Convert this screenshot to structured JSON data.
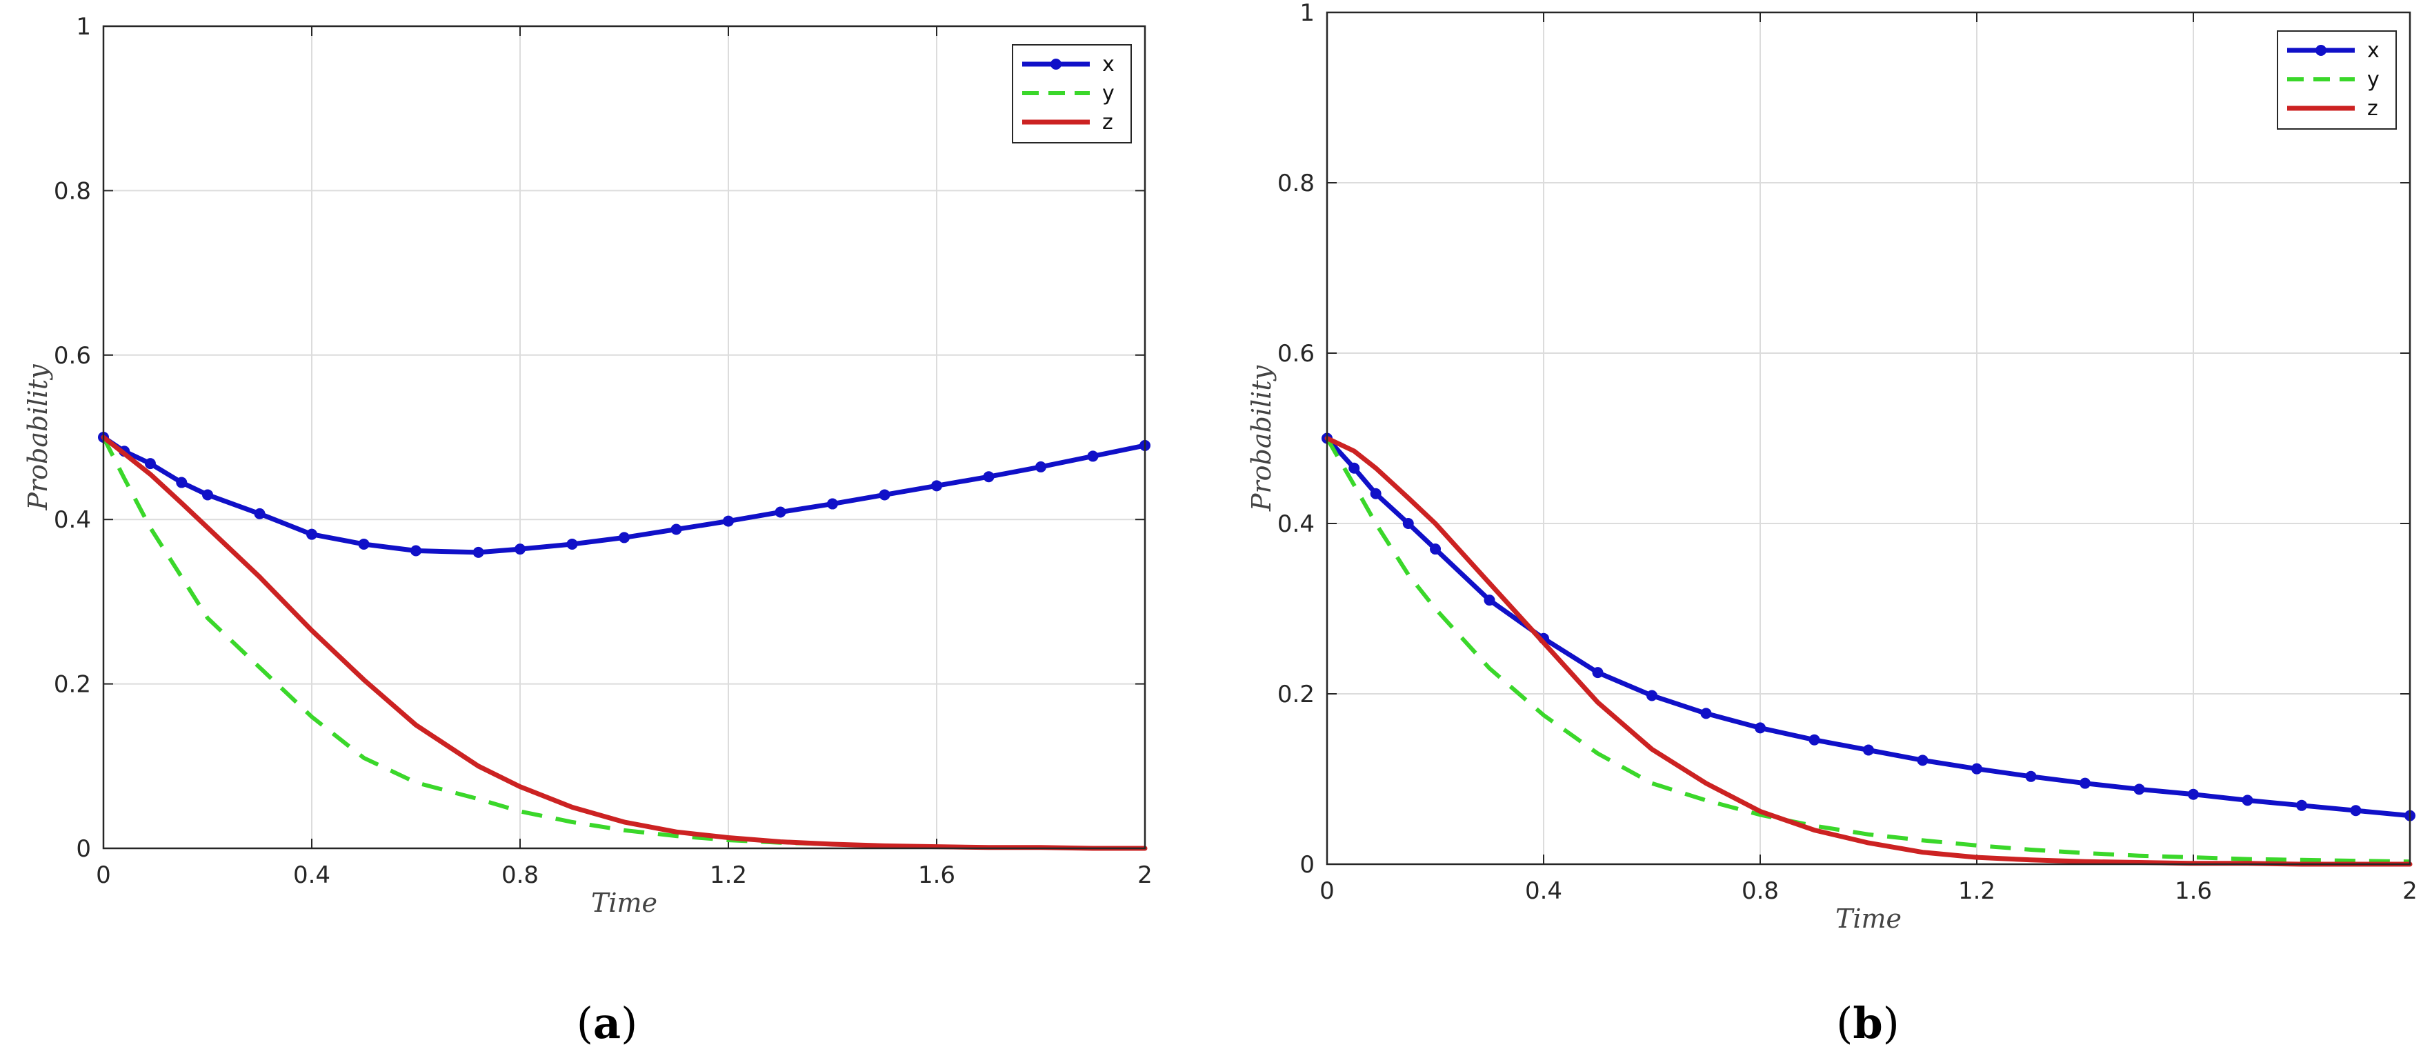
{
  "chart_data": [
    {
      "type": "line",
      "panel_label": "(a)",
      "xlabel": "Time",
      "ylabel": "Probability",
      "xlim": [
        0,
        2
      ],
      "ylim": [
        0,
        1
      ],
      "xticks": [
        "0",
        "0.4",
        "0.8",
        "1.2",
        "1.6",
        "2"
      ],
      "yticks": [
        "0",
        "0.2",
        "0.4",
        "0.6",
        "0.8",
        "1"
      ],
      "grid": true,
      "legend_position": "top-right",
      "legend": [
        "x",
        "y",
        "z"
      ],
      "x": [
        0,
        0.04,
        0.09,
        0.15,
        0.2,
        0.3,
        0.4,
        0.5,
        0.6,
        0.72,
        0.8,
        0.9,
        1.0,
        1.1,
        1.2,
        1.3,
        1.4,
        1.5,
        1.6,
        1.7,
        1.8,
        1.9,
        2.0
      ],
      "series": [
        {
          "name": "x",
          "color": "#1010c8",
          "style": "solid-markers",
          "values": [
            0.5,
            0.483,
            0.468,
            0.445,
            0.43,
            0.407,
            0.382,
            0.37,
            0.362,
            0.36,
            0.364,
            0.37,
            0.378,
            0.388,
            0.398,
            0.409,
            0.419,
            0.43,
            0.441,
            0.452,
            0.464,
            0.477,
            0.49
          ]
        },
        {
          "name": "y",
          "color": "#3ad72a",
          "style": "dashed",
          "values": [
            0.5,
            0.45,
            0.39,
            0.33,
            0.28,
            0.22,
            0.16,
            0.11,
            0.08,
            0.06,
            0.045,
            0.032,
            0.022,
            0.015,
            0.01,
            0.007,
            0.005,
            0.003,
            0.002,
            0.001,
            0.001,
            0.0,
            0.0
          ]
        },
        {
          "name": "z",
          "color": "#cc2222",
          "style": "solid",
          "values": [
            0.5,
            0.48,
            0.455,
            0.42,
            0.39,
            0.33,
            0.265,
            0.205,
            0.15,
            0.1,
            0.075,
            0.05,
            0.032,
            0.02,
            0.013,
            0.008,
            0.005,
            0.003,
            0.002,
            0.001,
            0.001,
            0.0,
            0.0
          ]
        }
      ]
    },
    {
      "type": "line",
      "panel_label": "(b)",
      "xlabel": "Time",
      "ylabel": "Probability",
      "xlim": [
        0,
        2
      ],
      "ylim": [
        0,
        1
      ],
      "xticks": [
        "0",
        "0.4",
        "0.8",
        "1.2",
        "1.6",
        "2"
      ],
      "yticks": [
        "0",
        "0.2",
        "0.4",
        "0.6",
        "0.8",
        "1"
      ],
      "grid": true,
      "legend_position": "top-right",
      "legend": [
        "x",
        "y",
        "z"
      ],
      "x": [
        0,
        0.05,
        0.09,
        0.15,
        0.2,
        0.3,
        0.4,
        0.5,
        0.6,
        0.7,
        0.8,
        0.9,
        1.0,
        1.1,
        1.2,
        1.3,
        1.4,
        1.5,
        1.6,
        1.7,
        1.8,
        1.9,
        2.0
      ],
      "series": [
        {
          "name": "x",
          "color": "#1010c8",
          "style": "solid-markers",
          "values": [
            0.5,
            0.465,
            0.435,
            0.4,
            0.37,
            0.31,
            0.265,
            0.225,
            0.198,
            0.177,
            0.16,
            0.146,
            0.134,
            0.122,
            0.112,
            0.103,
            0.095,
            0.088,
            0.082,
            0.075,
            0.069,
            0.063,
            0.057
          ]
        },
        {
          "name": "y",
          "color": "#3ad72a",
          "style": "dashed",
          "values": [
            0.5,
            0.445,
            0.4,
            0.34,
            0.3,
            0.23,
            0.175,
            0.13,
            0.095,
            0.075,
            0.058,
            0.045,
            0.035,
            0.028,
            0.022,
            0.017,
            0.013,
            0.01,
            0.008,
            0.006,
            0.005,
            0.004,
            0.003
          ]
        },
        {
          "name": "z",
          "color": "#cc2222",
          "style": "solid",
          "values": [
            0.5,
            0.485,
            0.465,
            0.43,
            0.4,
            0.33,
            0.26,
            0.19,
            0.135,
            0.095,
            0.062,
            0.04,
            0.025,
            0.014,
            0.008,
            0.005,
            0.003,
            0.002,
            0.001,
            0.001,
            0.0,
            0.0,
            0.0
          ]
        }
      ]
    }
  ]
}
